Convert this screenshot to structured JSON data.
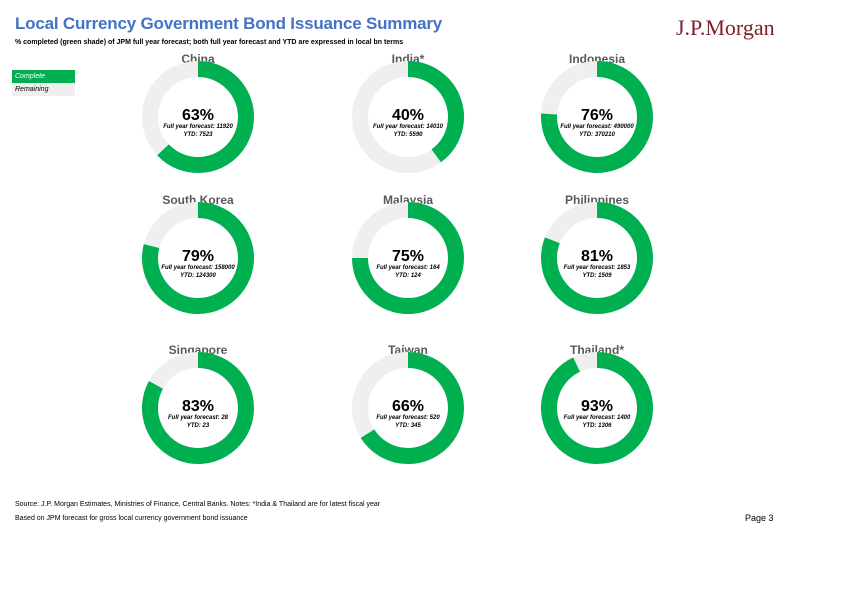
{
  "header": {
    "title": "Local Currency Government Bond Issuance Summary",
    "subtitle": "% completed (green shade) of JPM full year forecast; both full year forecast and YTD are expressed in local bn terms",
    "logo_text": "J.P.Morgan"
  },
  "legend": {
    "complete_label": "Complete",
    "remaining_label": "Remaining"
  },
  "colors": {
    "complete": "#00b050",
    "remaining": "#efefef",
    "title": "#4472c4",
    "country_label": "#595959",
    "logo": "#7f1f2b"
  },
  "chart_data": [
    {
      "type": "pie",
      "title": "China",
      "values": [
        63,
        37
      ],
      "labels": [
        "Complete",
        "Remaining"
      ],
      "pct_label": "63%",
      "forecast_label": "Full year forecast: 11920",
      "ytd_label": "YTD: 7523"
    },
    {
      "type": "pie",
      "title": "India*",
      "values": [
        40,
        60
      ],
      "labels": [
        "Complete",
        "Remaining"
      ],
      "pct_label": "40%",
      "forecast_label": "Full year forecast: 14010",
      "ytd_label": "YTD: 5590"
    },
    {
      "type": "pie",
      "title": "Indonesia",
      "values": [
        76,
        24
      ],
      "labels": [
        "Complete",
        "Remaining"
      ],
      "pct_label": "76%",
      "forecast_label": "Full year forecast: 490000",
      "ytd_label": "YTD: 370210"
    },
    {
      "type": "pie",
      "title": "South Korea",
      "values": [
        79,
        21
      ],
      "labels": [
        "Complete",
        "Remaining"
      ],
      "pct_label": "79%",
      "forecast_label": "Full year forecast: 158000",
      "ytd_label": "YTD: 124300"
    },
    {
      "type": "pie",
      "title": "Malaysia",
      "values": [
        75,
        25
      ],
      "labels": [
        "Complete",
        "Remaining"
      ],
      "pct_label": "75%",
      "forecast_label": "Full year forecast: 164",
      "ytd_label": "YTD: 124"
    },
    {
      "type": "pie",
      "title": "Philippines",
      "values": [
        81,
        19
      ],
      "labels": [
        "Complete",
        "Remaining"
      ],
      "pct_label": "81%",
      "forecast_label": "Full year forecast: 1853",
      "ytd_label": "YTD: 1509"
    },
    {
      "type": "pie",
      "title": "Singapore",
      "values": [
        83,
        17
      ],
      "labels": [
        "Complete",
        "Remaining"
      ],
      "pct_label": "83%",
      "forecast_label": "Full year forecast: 28",
      "ytd_label": "YTD: 23"
    },
    {
      "type": "pie",
      "title": "Taiwan",
      "values": [
        66,
        34
      ],
      "labels": [
        "Complete",
        "Remaining"
      ],
      "pct_label": "66%",
      "forecast_label": "Full year forecast: 520",
      "ytd_label": "YTD: 345"
    },
    {
      "type": "pie",
      "title": "Thailand*",
      "values": [
        93,
        7
      ],
      "labels": [
        "Complete",
        "Remaining"
      ],
      "pct_label": "93%",
      "forecast_label": "Full year forecast: 1400",
      "ytd_label": "YTD: 1306"
    }
  ],
  "footer": {
    "source_note": "Source: J.P. Morgan Estimates, Ministries of Finance, Central Banks. Notes: *India & Thailand are for latest fiscal year",
    "basis_note": "Based on JPM forecast for gross local currency government bond issuance",
    "page_label": "Page 3"
  }
}
